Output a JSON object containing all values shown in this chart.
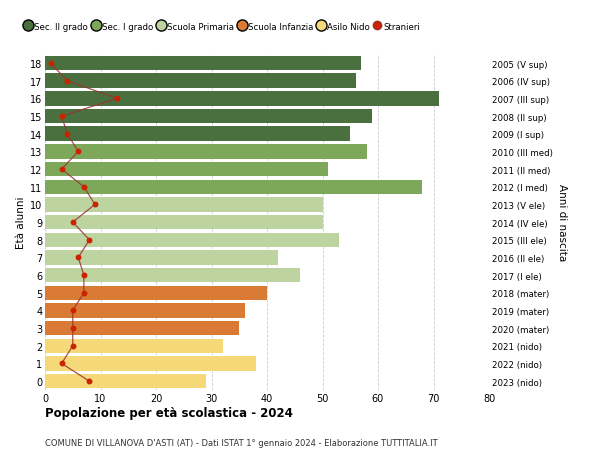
{
  "ages": [
    18,
    17,
    16,
    15,
    14,
    13,
    12,
    11,
    10,
    9,
    8,
    7,
    6,
    5,
    4,
    3,
    2,
    1,
    0
  ],
  "bar_values": [
    57,
    56,
    71,
    59,
    55,
    58,
    51,
    68,
    50,
    50,
    53,
    42,
    46,
    40,
    36,
    35,
    32,
    38,
    29
  ],
  "bar_colors": [
    "#4a7040",
    "#4a7040",
    "#4a7040",
    "#4a7040",
    "#4a7040",
    "#7da85a",
    "#7da85a",
    "#7da85a",
    "#bdd4a0",
    "#bdd4a0",
    "#bdd4a0",
    "#bdd4a0",
    "#bdd4a0",
    "#d97b35",
    "#d97b35",
    "#d97b35",
    "#f5d878",
    "#f5d878",
    "#f5d878"
  ],
  "stranieri_values": [
    1,
    4,
    13,
    3,
    4,
    6,
    3,
    7,
    9,
    5,
    8,
    6,
    7,
    7,
    5,
    5,
    5,
    3,
    8
  ],
  "right_labels": [
    "2005 (V sup)",
    "2006 (IV sup)",
    "2007 (III sup)",
    "2008 (II sup)",
    "2009 (I sup)",
    "2010 (III med)",
    "2011 (II med)",
    "2012 (I med)",
    "2013 (V ele)",
    "2014 (IV ele)",
    "2015 (III ele)",
    "2016 (II ele)",
    "2017 (I ele)",
    "2018 (mater)",
    "2019 (mater)",
    "2020 (mater)",
    "2021 (nido)",
    "2022 (nido)",
    "2023 (nido)"
  ],
  "legend_labels": [
    "Sec. II grado",
    "Sec. I grado",
    "Scuola Primaria",
    "Scuola Infanzia",
    "Asilo Nido",
    "Stranieri"
  ],
  "legend_colors": [
    "#4a7040",
    "#7da85a",
    "#bdd4a0",
    "#d97b35",
    "#f5d878",
    "#cc2200"
  ],
  "ylabel": "Età alunni",
  "right_ylabel": "Anni di nascita",
  "title": "Popolazione per età scolastica - 2024",
  "subtitle": "COMUNE DI VILLANOVA D'ASTI (AT) - Dati ISTAT 1° gennaio 2024 - Elaborazione TUTTITALIA.IT",
  "xlim": [
    0,
    80
  ],
  "background_color": "#ffffff",
  "plot_bg_color": "#ffffff",
  "grid_color": "#cccccc",
  "stranieri_line_color": "#993333",
  "stranieri_dot_color": "#cc2200"
}
